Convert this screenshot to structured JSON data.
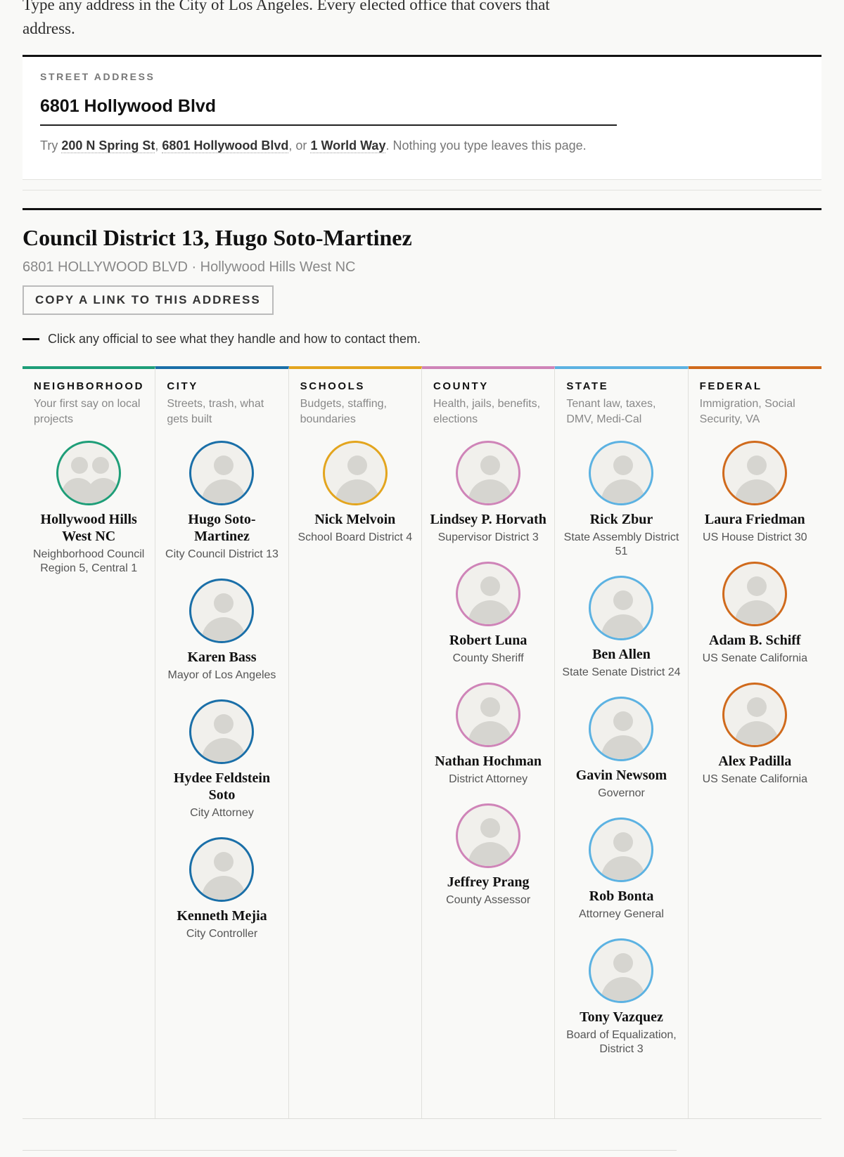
{
  "intro": "Type any address in the City of Los Angeles. Every elected office that covers that address.",
  "search": {
    "label": "STREET ADDRESS",
    "value": "6801 Hollywood Blvd",
    "hint_prefix": "Try ",
    "examples": [
      "200 N Spring St",
      "6801 Hollywood Blvd",
      "1 World Way"
    ],
    "hint_sep1": ", ",
    "hint_sep2": ", or ",
    "hint_suffix": ". Nothing you type leaves this page."
  },
  "result": {
    "title": "Council District 13, Hugo Soto-Martinez",
    "subtitle": "6801 HOLLYWOOD BLVD · Hollywood Hills West NC",
    "copy_label": "COPY A LINK TO THIS ADDRESS",
    "tip": "Click any official to see what they handle and how to contact them."
  },
  "columns": [
    {
      "name": "NEIGHBORHOOD",
      "desc": "Your first say on local projects",
      "color": "#1e9e78",
      "officials": [
        {
          "name": "Hollywood Hills West NC",
          "title": "Neighborhood Council Region 5, Central 1",
          "icon": "group-avatar-icon"
        }
      ]
    },
    {
      "name": "CITY",
      "desc": "Streets, trash, what gets built",
      "color": "#1a6fa8",
      "officials": [
        {
          "name": "Hugo Soto-Martinez",
          "title": "City Council District 13",
          "icon": "person-avatar-icon"
        },
        {
          "name": "Karen Bass",
          "title": "Mayor of Los Angeles",
          "icon": "person-avatar-icon"
        },
        {
          "name": "Hydee Feldstein Soto",
          "title": "City Attorney",
          "icon": "person-avatar-icon"
        },
        {
          "name": "Kenneth Mejia",
          "title": "City Controller",
          "icon": "person-avatar-icon"
        }
      ]
    },
    {
      "name": "SCHOOLS",
      "desc": "Budgets, staffing, boundaries",
      "color": "#e3a51e",
      "officials": [
        {
          "name": "Nick Melvoin",
          "title": "School Board District 4",
          "icon": "person-avatar-icon"
        }
      ]
    },
    {
      "name": "COUNTY",
      "desc": "Health, jails, benefits, elections",
      "color": "#cf84b8",
      "officials": [
        {
          "name": "Lindsey P. Horvath",
          "title": "Supervisor District 3",
          "icon": "person-avatar-icon"
        },
        {
          "name": "Robert Luna",
          "title": "County Sheriff",
          "icon": "person-avatar-icon"
        },
        {
          "name": "Nathan Hochman",
          "title": "District Attorney",
          "icon": "person-avatar-icon"
        },
        {
          "name": "Jeffrey Prang",
          "title": "County Assessor",
          "icon": "person-avatar-icon"
        }
      ]
    },
    {
      "name": "STATE",
      "desc": "Tenant law, taxes, DMV, Medi-Cal",
      "color": "#5cb2e2",
      "officials": [
        {
          "name": "Rick Zbur",
          "title": "State Assembly District 51",
          "icon": "person-avatar-icon"
        },
        {
          "name": "Ben Allen",
          "title": "State Senate District 24",
          "icon": "person-avatar-icon"
        },
        {
          "name": "Gavin Newsom",
          "title": "Governor",
          "icon": "person-avatar-icon"
        },
        {
          "name": "Rob Bonta",
          "title": "Attorney General",
          "icon": "person-avatar-icon"
        },
        {
          "name": "Tony Vazquez",
          "title": "Board of Equalization, District 3",
          "icon": "person-avatar-icon"
        }
      ]
    },
    {
      "name": "FEDERAL",
      "desc": "Immigration, Social Security, VA",
      "color": "#d06a1c",
      "officials": [
        {
          "name": "Laura Friedman",
          "title": "US House District 30",
          "icon": "person-avatar-icon"
        },
        {
          "name": "Adam B. Schiff",
          "title": "US Senate California",
          "icon": "person-avatar-icon"
        },
        {
          "name": "Alex Padilla",
          "title": "US Senate California",
          "icon": "person-avatar-icon"
        }
      ]
    }
  ]
}
